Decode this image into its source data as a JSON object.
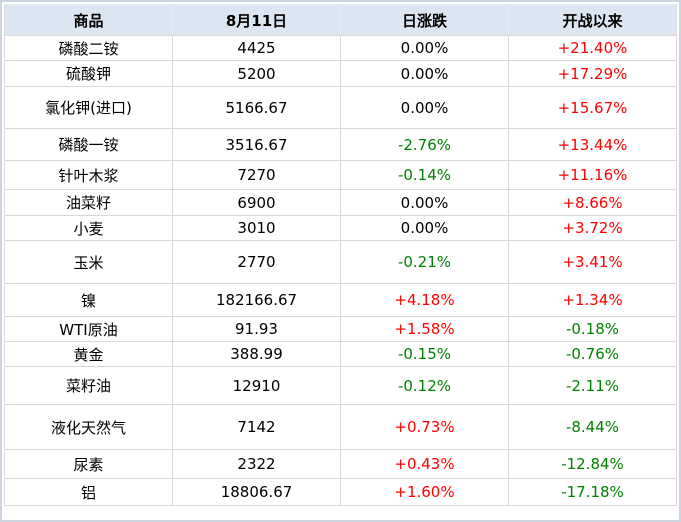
{
  "chart_data": {
    "type": "table",
    "columns": [
      "商品",
      "8月11日",
      "日涨跌",
      "开战以来"
    ],
    "rows": [
      {
        "name": "磷酸二铵",
        "price": "4425",
        "daily": "0.00%",
        "daily_dir": "flat",
        "since": "+21.40%",
        "since_dir": "up",
        "h": 25
      },
      {
        "name": "硫酸钾",
        "price": "5200",
        "daily": "0.00%",
        "daily_dir": "flat",
        "since": "+17.29%",
        "since_dir": "up",
        "h": 26
      },
      {
        "name": "氯化钾(进口)",
        "price": "5166.67",
        "daily": "0.00%",
        "daily_dir": "flat",
        "since": "+15.67%",
        "since_dir": "up",
        "h": 42
      },
      {
        "name": "磷酸一铵",
        "price": "3516.67",
        "daily": "-2.76%",
        "daily_dir": "down",
        "since": "+13.44%",
        "since_dir": "up",
        "h": 32
      },
      {
        "name": "针叶木浆",
        "price": "7270",
        "daily": "-0.14%",
        "daily_dir": "down",
        "since": "+11.16%",
        "since_dir": "up",
        "h": 29
      },
      {
        "name": "油菜籽",
        "price": "6900",
        "daily": "0.00%",
        "daily_dir": "flat",
        "since": "+8.66%",
        "since_dir": "up",
        "h": 26
      },
      {
        "name": "小麦",
        "price": "3010",
        "daily": "0.00%",
        "daily_dir": "flat",
        "since": "+3.72%",
        "since_dir": "up",
        "h": 25
      },
      {
        "name": "玉米",
        "price": "2770",
        "daily": "-0.21%",
        "daily_dir": "down",
        "since": "+3.41%",
        "since_dir": "up",
        "h": 43
      },
      {
        "name": "镍",
        "price": "182166.67",
        "daily": "+4.18%",
        "daily_dir": "up",
        "since": "+1.34%",
        "since_dir": "up",
        "h": 33
      },
      {
        "name": "WTI原油",
        "price": "91.93",
        "daily": "+1.58%",
        "daily_dir": "up",
        "since": "-0.18%",
        "since_dir": "down",
        "h": 25
      },
      {
        "name": "黄金",
        "price": "388.99",
        "daily": "-0.15%",
        "daily_dir": "down",
        "since": "-0.76%",
        "since_dir": "down",
        "h": 25
      },
      {
        "name": "菜籽油",
        "price": "12910",
        "daily": "-0.12%",
        "daily_dir": "down",
        "since": "-2.11%",
        "since_dir": "down",
        "h": 38
      },
      {
        "name": "液化天然气",
        "price": "7142",
        "daily": "+0.73%",
        "daily_dir": "up",
        "since": "-8.44%",
        "since_dir": "down",
        "h": 45
      },
      {
        "name": "尿素",
        "price": "2322",
        "daily": "+0.43%",
        "daily_dir": "up",
        "since": "-12.84%",
        "since_dir": "down",
        "h": 29
      },
      {
        "name": "铝",
        "price": "18806.67",
        "daily": "+1.60%",
        "daily_dir": "up",
        "since": "-17.18%",
        "since_dir": "down",
        "h": 27
      }
    ]
  },
  "colors": {
    "up": "#ff0000",
    "down": "#008000",
    "flat": "#000000",
    "header_bg": "#dce6f2",
    "grid": "#d9d9d9",
    "frame": "#ccd4e0"
  }
}
